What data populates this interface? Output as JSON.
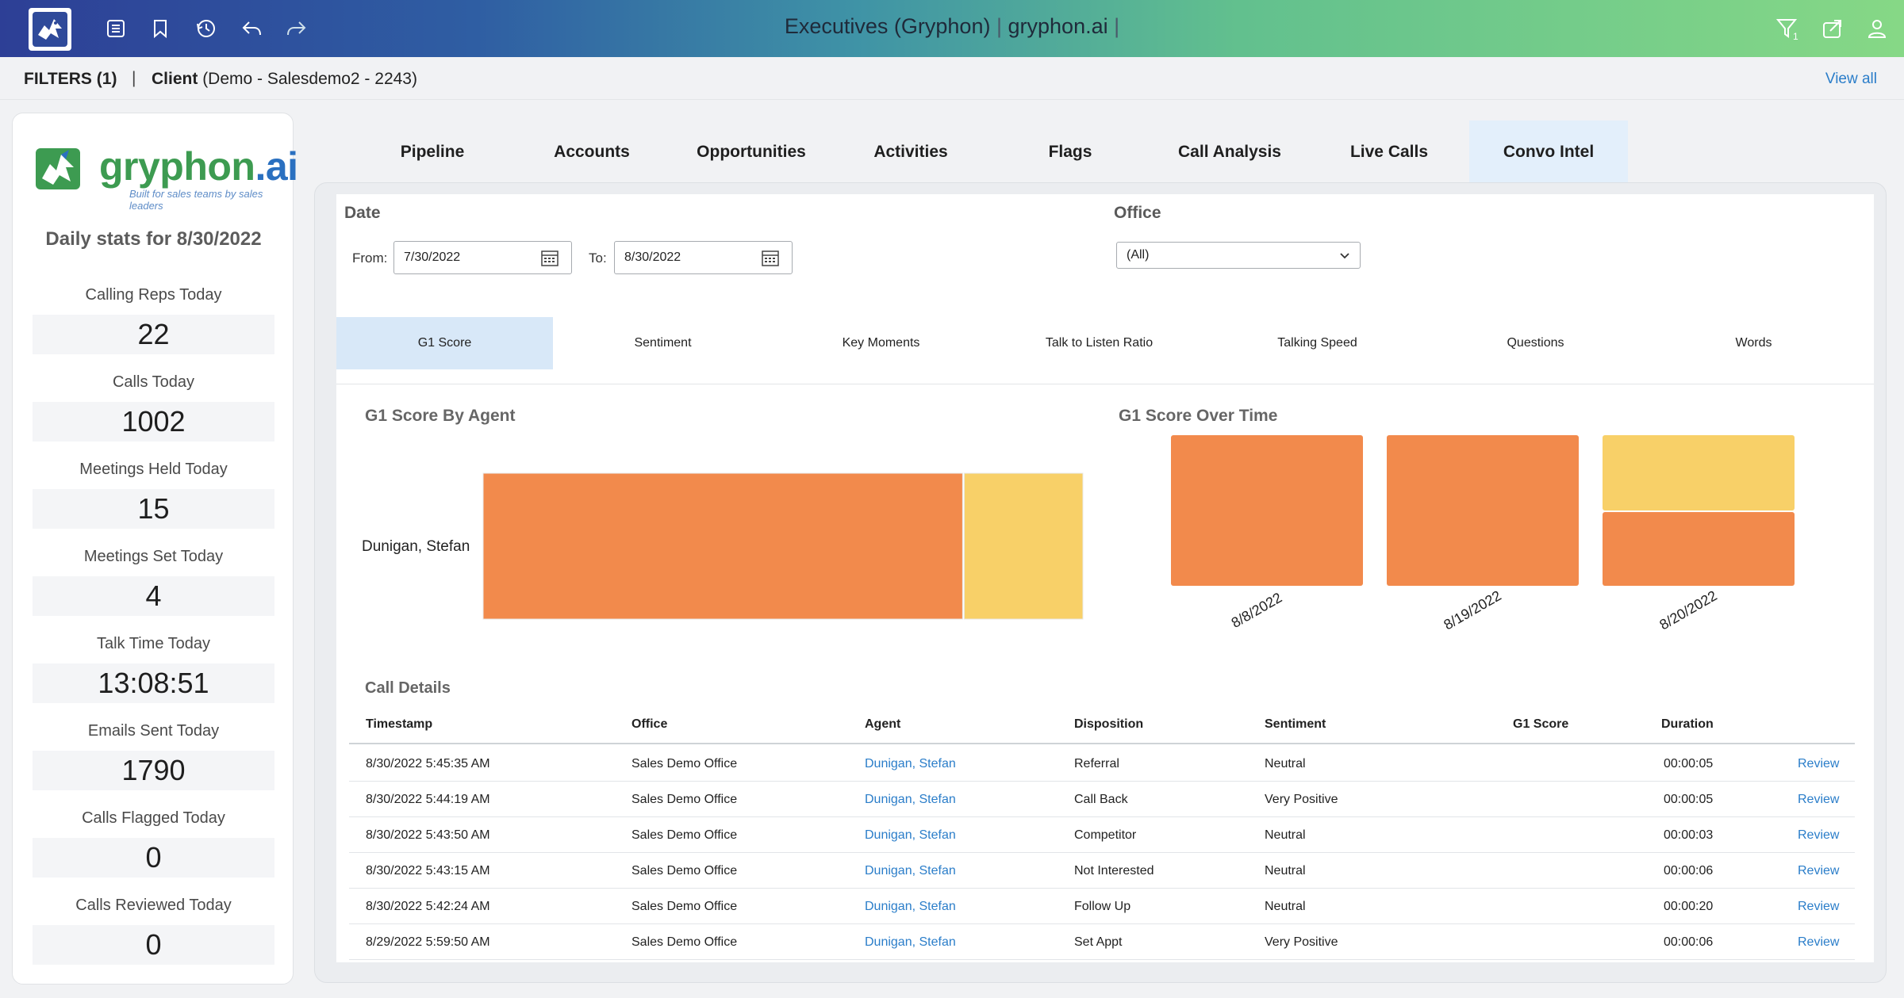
{
  "topbar": {
    "title_app": "Executives (Gryphon)",
    "title_sep1": "|",
    "title_domain": "gryphon.ai",
    "title_sep2": "|",
    "left_icons": [
      "list-icon",
      "bookmark-icon",
      "history-icon",
      "undo-icon",
      "redo-icon"
    ],
    "right_icons": [
      "filter-icon",
      "share-icon",
      "user-icon"
    ]
  },
  "filterbar": {
    "filters_label": "FILTERS (1)",
    "pipe": "|",
    "client_label": "Client",
    "client_value": "(Demo - Salesdemo2 - 2243)",
    "view_all": "View all"
  },
  "sidebar": {
    "brand_name_main": "gryphon",
    "brand_name_dot": ".ai",
    "brand_tagline": "Built for sales teams by sales leaders",
    "daily_title": "Daily stats for 8/30/2022",
    "stats": [
      {
        "label": "Calling Reps Today",
        "value": "22"
      },
      {
        "label": "Calls Today",
        "value": "1002"
      },
      {
        "label": "Meetings Held Today",
        "value": "15"
      },
      {
        "label": "Meetings Set Today",
        "value": "4"
      },
      {
        "label": "Talk Time Today",
        "value": "13:08:51"
      },
      {
        "label": "Emails Sent Today",
        "value": "1790"
      },
      {
        "label": "Calls Flagged Today",
        "value": "0"
      },
      {
        "label": "Calls Reviewed Today",
        "value": "0"
      }
    ]
  },
  "tabs": [
    "Pipeline",
    "Accounts",
    "Opportunities",
    "Activities",
    "Flags",
    "Call Analysis",
    "Live Calls",
    "Convo Intel"
  ],
  "active_tab": "Convo Intel",
  "filters": {
    "date_label": "Date",
    "from_label": "From:",
    "from_value": "7/30/2022",
    "to_label": "To:",
    "to_value": "8/30/2022",
    "office_label": "Office",
    "office_value": "(All)"
  },
  "subtabs": [
    "G1 Score",
    "Sentiment",
    "Key Moments",
    "Talk to Listen Ratio",
    "Talking Speed",
    "Questions",
    "Words"
  ],
  "active_subtab": "G1 Score",
  "colors": {
    "orange": "#f28a4c",
    "yellow": "#f8d068",
    "link": "#2a7dc9",
    "active_tab": "#e3effb"
  },
  "charts": {
    "by_agent_title": "G1 Score By Agent",
    "over_time_title": "G1 Score Over Time"
  },
  "chart_data": [
    {
      "type": "bar",
      "orientation": "horizontal",
      "stacked": true,
      "normalized": true,
      "categories": [
        "Dunigan, Stefan"
      ],
      "series": [
        {
          "color": "#f28a4c",
          "values": [
            0.8
          ]
        },
        {
          "color": "#f8d068",
          "values": [
            0.2
          ]
        }
      ],
      "title": "G1 Score By Agent"
    },
    {
      "type": "bar",
      "stacked": true,
      "normalized": true,
      "categories": [
        "8/8/2022",
        "8/19/2022",
        "8/20/2022"
      ],
      "series": [
        {
          "color": "#f28a4c",
          "values": [
            1.0,
            1.0,
            0.5
          ]
        },
        {
          "color": "#f8d068",
          "values": [
            0.0,
            0.0,
            0.5
          ]
        }
      ],
      "title": "G1 Score Over Time"
    }
  ],
  "call_details": {
    "title": "Call Details",
    "columns": [
      "Timestamp",
      "Office",
      "Agent",
      "Disposition",
      "Sentiment",
      "G1 Score",
      "Duration"
    ],
    "rows": [
      {
        "timestamp": "8/30/2022 5:45:35 AM",
        "office": "Sales Demo Office",
        "agent": "Dunigan, Stefan",
        "disposition": "Referral",
        "sentiment": "Neutral",
        "g1": "",
        "duration": "00:00:05",
        "action": "Review"
      },
      {
        "timestamp": "8/30/2022 5:44:19 AM",
        "office": "Sales Demo Office",
        "agent": "Dunigan, Stefan",
        "disposition": "Call Back",
        "sentiment": "Very Positive",
        "g1": "",
        "duration": "00:00:05",
        "action": "Review"
      },
      {
        "timestamp": "8/30/2022 5:43:50 AM",
        "office": "Sales Demo Office",
        "agent": "Dunigan, Stefan",
        "disposition": "Competitor",
        "sentiment": "Neutral",
        "g1": "",
        "duration": "00:00:03",
        "action": "Review"
      },
      {
        "timestamp": "8/30/2022 5:43:15 AM",
        "office": "Sales Demo Office",
        "agent": "Dunigan, Stefan",
        "disposition": "Not Interested",
        "sentiment": "Neutral",
        "g1": "",
        "duration": "00:00:06",
        "action": "Review"
      },
      {
        "timestamp": "8/30/2022 5:42:24 AM",
        "office": "Sales Demo Office",
        "agent": "Dunigan, Stefan",
        "disposition": "Follow Up",
        "sentiment": "Neutral",
        "g1": "",
        "duration": "00:00:20",
        "action": "Review"
      },
      {
        "timestamp": "8/29/2022 5:59:50 AM",
        "office": "Sales Demo Office",
        "agent": "Dunigan, Stefan",
        "disposition": "Set Appt",
        "sentiment": "Very Positive",
        "g1": "",
        "duration": "00:00:06",
        "action": "Review"
      }
    ]
  }
}
